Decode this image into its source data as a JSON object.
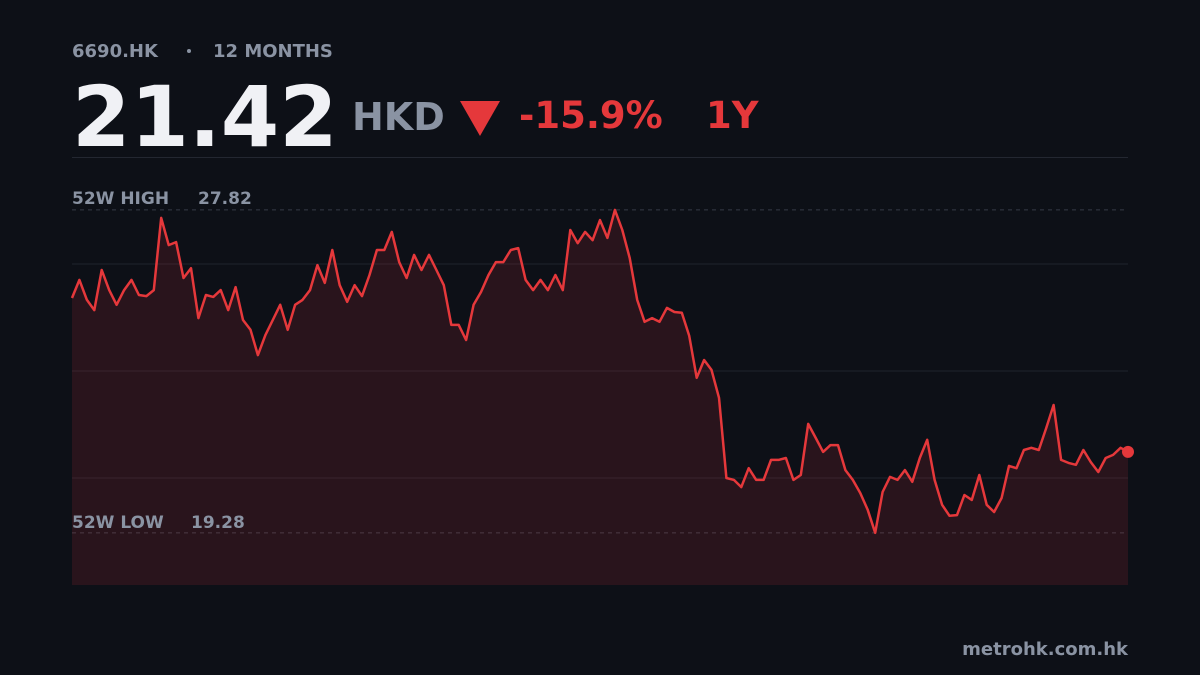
{
  "chart_data": {
    "type": "line",
    "ticker": "6690.HK",
    "period": "12 MONTHS",
    "price": 21.42,
    "currency": "HKD",
    "change": {
      "value": -15.9,
      "label": "-15.9%"
    },
    "change_period": "1Y",
    "high": {
      "label": "52W HIGH",
      "value": 27.82
    },
    "low": {
      "label": "52W LOW",
      "value": 19.28
    },
    "source": "metrohk.com.hk",
    "color": "#e5383b",
    "ylim": [
      17.9,
      29.22
    ],
    "yticks": [
      20.73,
      23.56,
      26.39
    ],
    "grid": true,
    "values": [
      25.49,
      25.97,
      25.44,
      25.17,
      26.23,
      25.7,
      25.31,
      25.7,
      25.97,
      25.57,
      25.54,
      25.7,
      27.61,
      26.89,
      26.97,
      26.02,
      26.28,
      24.96,
      25.57,
      25.52,
      25.7,
      25.17,
      25.78,
      24.91,
      24.65,
      23.98,
      24.51,
      24.91,
      25.31,
      24.65,
      25.31,
      25.44,
      25.7,
      26.36,
      25.89,
      26.76,
      25.83,
      25.39,
      25.83,
      25.54,
      26.1,
      26.76,
      26.76,
      27.24,
      26.44,
      26.02,
      26.63,
      26.23,
      26.63,
      26.23,
      25.83,
      24.78,
      24.78,
      24.38,
      25.31,
      25.65,
      26.1,
      26.44,
      26.44,
      26.76,
      26.81,
      25.97,
      25.7,
      25.97,
      25.7,
      26.1,
      25.7,
      27.29,
      26.94,
      27.24,
      27.02,
      27.55,
      27.08,
      27.82,
      27.29,
      26.55,
      25.44,
      24.86,
      24.96,
      24.86,
      25.23,
      25.12,
      25.1,
      24.49,
      23.38,
      23.85,
      23.59,
      22.85,
      20.73,
      20.68,
      20.49,
      20.99,
      20.68,
      20.68,
      21.21,
      21.21,
      21.26,
      20.68,
      20.81,
      22.16,
      21.79,
      21.42,
      21.6,
      21.6,
      20.94,
      20.68,
      20.33,
      19.89,
      19.28,
      20.36,
      20.76,
      20.68,
      20.94,
      20.63,
      21.26,
      21.74,
      20.68,
      20.02,
      19.73,
      19.75,
      20.28,
      20.15,
      20.81,
      20.02,
      19.83,
      20.2,
      21.05,
      20.99,
      21.47,
      21.53,
      21.47,
      22.05,
      22.66,
      21.21,
      21.13,
      21.08,
      21.47,
      21.15,
      20.89,
      21.26,
      21.34,
      21.53,
      21.42
    ]
  }
}
